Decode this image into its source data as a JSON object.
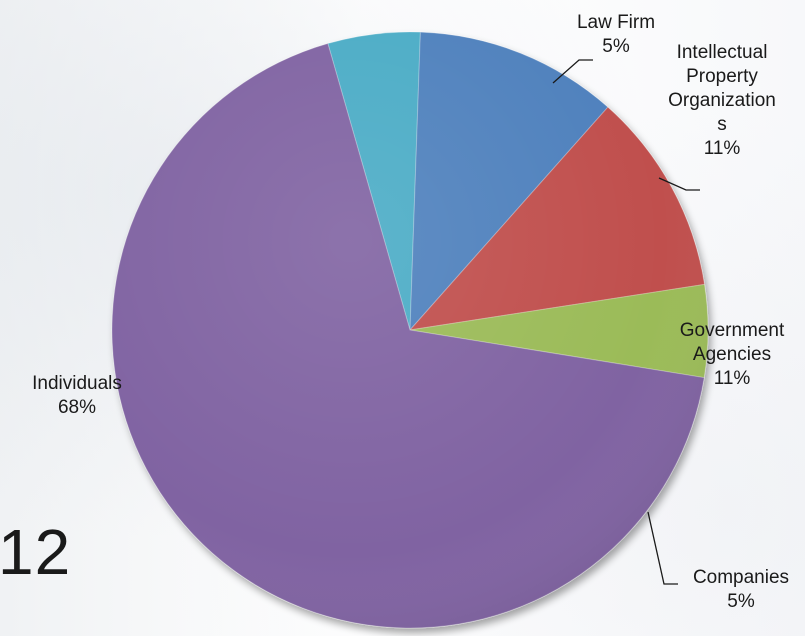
{
  "chart_data": {
    "type": "pie",
    "title": "",
    "slices": [
      {
        "label_lines": [
          "Law Firm",
          "5%"
        ],
        "value": 5,
        "color": "#4BACC6"
      },
      {
        "label_lines": [
          "Intellectual",
          "Property",
          "Organization",
          "s",
          "11%"
        ],
        "value": 11,
        "color": "#4F81BD"
      },
      {
        "label_lines": [
          "Government",
          "Agencies",
          "11%"
        ],
        "value": 11,
        "color": "#C0504D"
      },
      {
        "label_lines": [
          "Companies",
          "5%"
        ],
        "value": 5,
        "color": "#9BBB59"
      },
      {
        "label_lines": [
          "Individuals",
          "68%"
        ],
        "value": 68,
        "color": "#8064A2"
      }
    ],
    "legend": "none",
    "data_labels": "outside with leader lines"
  },
  "slide_text": {
    "fragment": "12"
  }
}
